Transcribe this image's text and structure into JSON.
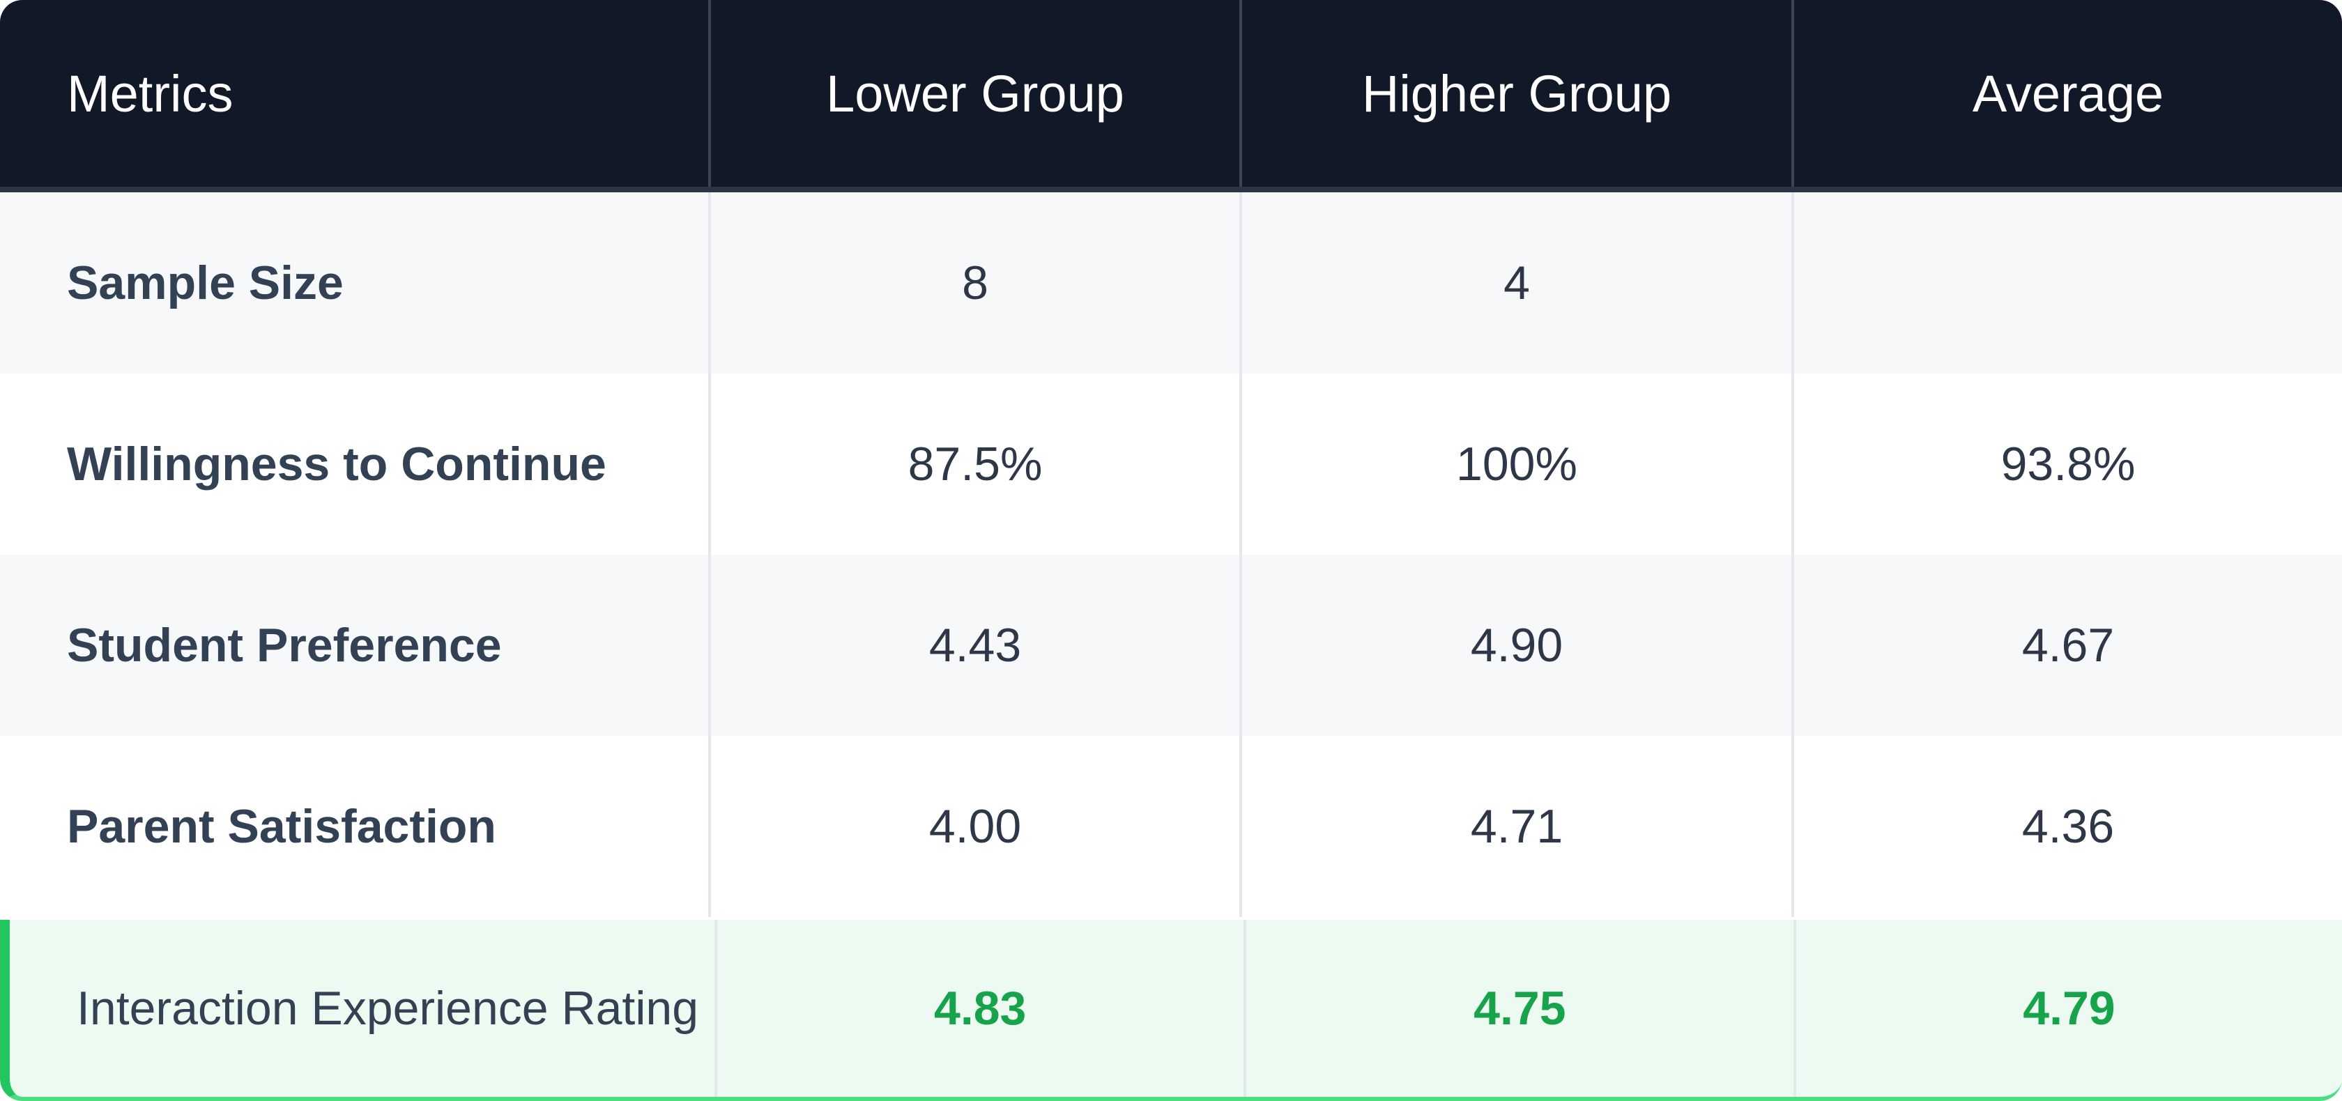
{
  "table": {
    "headers": [
      "Metrics",
      "Lower Group",
      "Higher Group",
      "Average"
    ],
    "rows": [
      {
        "metric": "Sample Size",
        "lower": "8",
        "higher": "4",
        "average": ""
      },
      {
        "metric": "Willingness to Continue",
        "lower": "87.5%",
        "higher": "100%",
        "average": "93.8%"
      },
      {
        "metric": "Student Preference",
        "lower": "4.43",
        "higher": "4.90",
        "average": "4.67"
      },
      {
        "metric": "Parent Satisfaction",
        "lower": "4.00",
        "higher": "4.71",
        "average": "4.36"
      },
      {
        "metric": "Interaction Experience Rating",
        "lower": "4.83",
        "higher": "4.75",
        "average": "4.79"
      }
    ]
  },
  "colors": {
    "header_bg": "#111827",
    "stripe_bg": "#f6f8fa",
    "highlight_bg": "#edfaf1",
    "highlight_accent": "#22c55e",
    "highlight_text": "#16a34a"
  }
}
